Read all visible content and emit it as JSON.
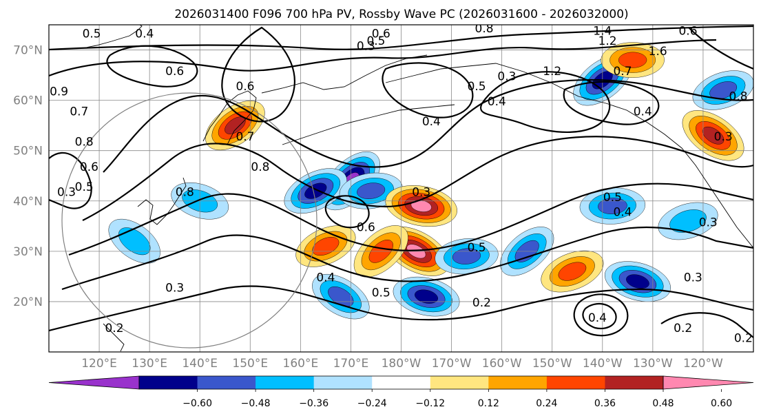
{
  "chart_data": {
    "type": "contour_map",
    "title": "2026031400 F096 700 hPa PV, Rossby Wave PC (2026031600 - 2026032000)",
    "lon_range": [
      110,
      250
    ],
    "lat_range": [
      10,
      75
    ],
    "lon_ticks": [
      {
        "lon": 120,
        "label": "120°E"
      },
      {
        "lon": 130,
        "label": "130°E"
      },
      {
        "lon": 140,
        "label": "140°E"
      },
      {
        "lon": 150,
        "label": "150°E"
      },
      {
        "lon": 160,
        "label": "160°E"
      },
      {
        "lon": 170,
        "label": "170°E"
      },
      {
        "lon": 180,
        "label": "180°W"
      },
      {
        "lon": 190,
        "label": "170°W"
      },
      {
        "lon": 200,
        "label": "160°W"
      },
      {
        "lon": 210,
        "label": "150°W"
      },
      {
        "lon": 220,
        "label": "140°W"
      },
      {
        "lon": 230,
        "label": "130°W"
      },
      {
        "lon": 240,
        "label": "120°W"
      }
    ],
    "lat_ticks": [
      {
        "lat": 20,
        "label": "20°N"
      },
      {
        "lat": 30,
        "label": "30°N"
      },
      {
        "lat": 40,
        "label": "40°N"
      },
      {
        "lat": 50,
        "label": "50°N"
      },
      {
        "lat": 60,
        "label": "60°N"
      },
      {
        "lat": 70,
        "label": "70°N"
      }
    ],
    "colorbar": {
      "bins": [
        {
          "from": null,
          "to": -0.6,
          "color": "#9932cc"
        },
        {
          "from": -0.6,
          "to": -0.48,
          "color": "#00008b"
        },
        {
          "from": -0.48,
          "to": -0.36,
          "color": "#3a57cc"
        },
        {
          "from": -0.36,
          "to": -0.24,
          "color": "#00bfff"
        },
        {
          "from": -0.24,
          "to": -0.12,
          "color": "#b0e2ff"
        },
        {
          "from": -0.12,
          "to": 0.12,
          "color": "#ffffff"
        },
        {
          "from": 0.12,
          "to": 0.24,
          "color": "#ffe680"
        },
        {
          "from": 0.24,
          "to": 0.36,
          "color": "#ffa500"
        },
        {
          "from": 0.36,
          "to": 0.48,
          "color": "#ff4500"
        },
        {
          "from": 0.48,
          "to": 0.6,
          "color": "#b22222"
        },
        {
          "from": 0.6,
          "to": null,
          "color": "#ff88b0"
        }
      ],
      "tick_labels": [
        "−0.60",
        "−0.48",
        "−0.36",
        "−0.24",
        "−0.12",
        "0.12",
        "0.24",
        "0.36",
        "0.48",
        "0.60"
      ]
    },
    "shaded_anomalies": [
      {
        "lon": 170,
        "lat": 44,
        "value": -0.62
      },
      {
        "lon": 163,
        "lat": 42,
        "value": -0.5
      },
      {
        "lon": 174,
        "lat": 42,
        "value": -0.4
      },
      {
        "lon": 184,
        "lat": 39,
        "value": 0.62
      },
      {
        "lon": 183,
        "lat": 30,
        "value": 0.62
      },
      {
        "lon": 176,
        "lat": 30,
        "value": 0.45
      },
      {
        "lon": 165,
        "lat": 31,
        "value": 0.4
      },
      {
        "lon": 193,
        "lat": 29,
        "value": -0.4
      },
      {
        "lon": 185,
        "lat": 21,
        "value": -0.5
      },
      {
        "lon": 168,
        "lat": 21,
        "value": -0.4
      },
      {
        "lon": 205,
        "lat": 30,
        "value": -0.4
      },
      {
        "lon": 214,
        "lat": 26,
        "value": 0.45
      },
      {
        "lon": 222,
        "lat": 39,
        "value": -0.45
      },
      {
        "lon": 227,
        "lat": 24,
        "value": -0.5
      },
      {
        "lon": 242,
        "lat": 53,
        "value": 0.55
      },
      {
        "lon": 220,
        "lat": 64,
        "value": -0.5
      },
      {
        "lon": 244,
        "lat": 62,
        "value": -0.4
      },
      {
        "lon": 226,
        "lat": 68,
        "value": 0.4
      },
      {
        "lon": 140,
        "lat": 40,
        "value": -0.3
      },
      {
        "lon": 127,
        "lat": 32,
        "value": -0.3
      },
      {
        "lon": 147,
        "lat": 55,
        "value": 0.5
      },
      {
        "lon": 237,
        "lat": 36,
        "value": -0.35
      }
    ],
    "contour_labels": [
      {
        "lon": 118.5,
        "lat": 72.5,
        "text": "0.5"
      },
      {
        "lon": 129,
        "lat": 72.5,
        "text": "0.4"
      },
      {
        "lon": 116,
        "lat": 57,
        "text": "0.7"
      },
      {
        "lon": 117,
        "lat": 51,
        "text": "0.8"
      },
      {
        "lon": 118,
        "lat": 46,
        "text": "0.6"
      },
      {
        "lon": 117,
        "lat": 42,
        "text": "0.5"
      },
      {
        "lon": 113.5,
        "lat": 41,
        "text": "0.3"
      },
      {
        "lon": 137,
        "lat": 41,
        "text": "0.8"
      },
      {
        "lon": 112,
        "lat": 61,
        "text": "0.9"
      },
      {
        "lon": 135,
        "lat": 65,
        "text": "0.6"
      },
      {
        "lon": 149,
        "lat": 62,
        "text": "0.6"
      },
      {
        "lon": 149,
        "lat": 52,
        "text": "0.7"
      },
      {
        "lon": 152,
        "lat": 46,
        "text": "0.8"
      },
      {
        "lon": 175,
        "lat": 71,
        "text": "0.5"
      },
      {
        "lon": 176,
        "lat": 72.5,
        "text": "0.6"
      },
      {
        "lon": 173,
        "lat": 70,
        "text": "0.3"
      },
      {
        "lon": 196.5,
        "lat": 73.5,
        "text": "0.8"
      },
      {
        "lon": 186,
        "lat": 55,
        "text": "0.4"
      },
      {
        "lon": 199,
        "lat": 59,
        "text": "0.4"
      },
      {
        "lon": 195,
        "lat": 62,
        "text": "0.5"
      },
      {
        "lon": 201,
        "lat": 64,
        "text": "0.3"
      },
      {
        "lon": 220,
        "lat": 73,
        "text": "1.4"
      },
      {
        "lon": 221,
        "lat": 71,
        "text": "1.2"
      },
      {
        "lon": 210,
        "lat": 65,
        "text": "1.2"
      },
      {
        "lon": 224,
        "lat": 65,
        "text": "0.7"
      },
      {
        "lon": 231,
        "lat": 69,
        "text": "1.6"
      },
      {
        "lon": 237,
        "lat": 73,
        "text": "0.6"
      },
      {
        "lon": 228,
        "lat": 57,
        "text": "0.4"
      },
      {
        "lon": 247,
        "lat": 60,
        "text": "0.8"
      },
      {
        "lon": 244,
        "lat": 52,
        "text": "0.3"
      },
      {
        "lon": 184,
        "lat": 41,
        "text": "0.3"
      },
      {
        "lon": 173,
        "lat": 34,
        "text": "0.6"
      },
      {
        "lon": 195,
        "lat": 30,
        "text": "0.5"
      },
      {
        "lon": 222,
        "lat": 40,
        "text": "0.5"
      },
      {
        "lon": 224,
        "lat": 37,
        "text": "0.4"
      },
      {
        "lon": 241,
        "lat": 35,
        "text": "0.3"
      },
      {
        "lon": 165,
        "lat": 24,
        "text": "0.4"
      },
      {
        "lon": 176,
        "lat": 21,
        "text": "0.5"
      },
      {
        "lon": 196,
        "lat": 19,
        "text": "0.2"
      },
      {
        "lon": 219,
        "lat": 16,
        "text": "0.4"
      },
      {
        "lon": 238,
        "lat": 24,
        "text": "0.3"
      },
      {
        "lon": 135,
        "lat": 22,
        "text": "0.3"
      },
      {
        "lon": 123,
        "lat": 14,
        "text": "0.2"
      },
      {
        "lon": 236,
        "lat": 14,
        "text": "0.2"
      },
      {
        "lon": 248,
        "lat": 12,
        "text": "0.2"
      }
    ]
  }
}
